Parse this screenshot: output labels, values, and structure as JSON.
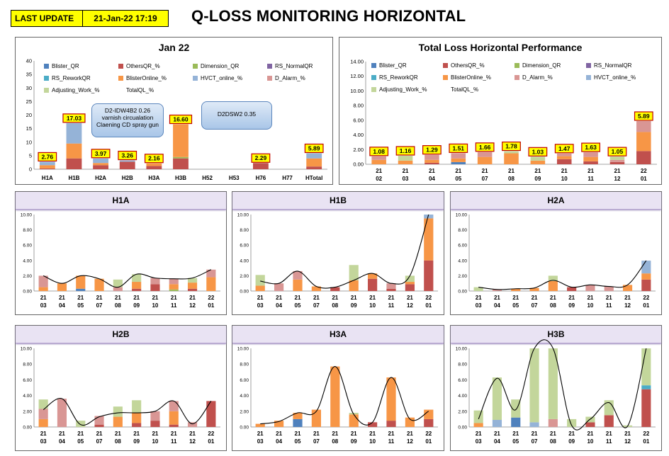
{
  "header": {
    "last_update_label": "LAST UPDATE",
    "last_update_value": "21-Jan-22 17:19",
    "title": "Q-LOSS MONITORING HORIZONTAL"
  },
  "colors": {
    "Blister_QR": "#4f81bd",
    "OthersQR_%": "#c0504d",
    "Dimension_QR": "#9bbb59",
    "RS_NormalQR": "#8064a2",
    "RS_ReworkQR": "#4bacc6",
    "BlisterOnline_%": "#f79646",
    "HVCT_online_%": "#95b3d7",
    "D_Alarm_%": "#d99694",
    "Adjusting_Work_%": "#c3d69b",
    "TotalQL_%": "#000000",
    "label_bg": "#ffff00",
    "label_border": "#c00000"
  },
  "legend_jan": [
    "Blister_QR",
    "OthersQR_%",
    "Dimension_QR",
    "RS_NormalQR",
    "RS_ReworkQR",
    "BlisterOnline_%",
    "HVCT_online_%",
    "D_Alarm_%",
    "Adjusting_Work_%",
    "TotalQL_%"
  ],
  "legend_total": [
    "Blister_QR",
    "OthersQR_%",
    "Dimension_QR",
    "RS_NormalQR",
    "RS_ReworkQR",
    "BlisterOnline_%",
    "D_Alarm_%",
    "HVCT_online_%",
    "Adjusting_Work_%",
    "TotalQL_%"
  ],
  "callouts": {
    "c1": "D2-IDW4B2 0.26 varnish circualation Claening CD spray gun",
    "c2": "D2DSW2 0.35"
  },
  "chart_data": [
    {
      "id": "jan",
      "type": "bar",
      "title": "Jan 22",
      "ylim": [
        0,
        40
      ],
      "yticks": [
        0,
        5,
        10,
        15,
        20,
        25,
        30,
        35,
        40
      ],
      "categories": [
        "H1A",
        "H1B",
        "H2A",
        "H2B",
        "H3A",
        "H3B",
        "H52",
        "H53",
        "H76",
        "H77",
        "HTotal"
      ],
      "totals": [
        2.76,
        17.03,
        3.97,
        3.26,
        2.16,
        16.6,
        null,
        null,
        2.29,
        null,
        5.89
      ],
      "totals_text": [
        "2.76",
        "17.03",
        "3.97",
        "3.26",
        "2.16",
        "16.60",
        "",
        "",
        "2.29",
        "",
        "5.89"
      ],
      "stacks": [
        {
          "OthersQR_%": 0.3,
          "BlisterOnline_%": 1.2,
          "HVCT_online_%": 1.26
        },
        {
          "OthersQR_%": 4.0,
          "BlisterOnline_%": 5.5,
          "HVCT_online_%": 7.53
        },
        {
          "OthersQR_%": 1.5,
          "BlisterOnline_%": 0.8,
          "HVCT_online_%": 1.67
        },
        {
          "OthersQR_%": 2.8,
          "HVCT_online_%": 0.46
        },
        {
          "OthersQR_%": 1.2,
          "BlisterOnline_%": 0.96
        },
        {
          "Dimension_QR": 0.5,
          "OthersQR_%": 4.0,
          "BlisterOnline_%": 12.1
        },
        {},
        {},
        {
          "OthersQR_%": 2.29
        },
        {},
        {
          "OthersQR_%": 1.0,
          "BlisterOnline_%": 3.0,
          "HVCT_online_%": 1.89
        }
      ]
    },
    {
      "id": "total",
      "type": "bar",
      "title": "Total Loss Horizontal Performance",
      "ylim": [
        0,
        14
      ],
      "yticks": [
        "0.00",
        "2.00",
        "4.00",
        "6.00",
        "8.00",
        "10.00",
        "12.00",
        "14.00"
      ],
      "categories": [
        "21 02",
        "21 03",
        "21 04",
        "21 05",
        "21 07",
        "21 08",
        "21 09",
        "21 10",
        "21 11",
        "21 12",
        "22 01"
      ],
      "totals": [
        1.08,
        1.16,
        1.29,
        1.51,
        1.66,
        1.78,
        1.03,
        1.47,
        1.63,
        1.05,
        5.89
      ],
      "totals_text": [
        "1.08",
        "1.16",
        "1.29",
        "1.51",
        "1.66",
        "1.78",
        "1.03",
        "1.47",
        "1.63",
        "1.05",
        "5.89"
      ],
      "stacks": [
        {
          "BlisterOnline_%": 0.6,
          "D_Alarm_%": 0.48
        },
        {
          "BlisterOnline_%": 0.5,
          "Adjusting_Work_%": 0.66
        },
        {
          "OthersQR_%": 0.2,
          "BlisterOnline_%": 0.4,
          "D_Alarm_%": 0.69
        },
        {
          "Blister_QR": 0.3,
          "BlisterOnline_%": 0.5,
          "D_Alarm_%": 0.71
        },
        {
          "BlisterOnline_%": 1.0,
          "D_Alarm_%": 0.66
        },
        {
          "BlisterOnline_%": 1.5,
          "Adjusting_Work_%": 0.28
        },
        {
          "BlisterOnline_%": 0.5,
          "Adjusting_Work_%": 0.53
        },
        {
          "OthersQR_%": 0.7,
          "BlisterOnline_%": 0.4,
          "D_Alarm_%": 0.37
        },
        {
          "OthersQR_%": 0.4,
          "BlisterOnline_%": 0.6,
          "D_Alarm_%": 0.63
        },
        {
          "OthersQR_%": 0.3,
          "Adjusting_Work_%": 0.45,
          "D_Alarm_%": 0.3
        },
        {
          "OthersQR_%": 1.8,
          "BlisterOnline_%": 2.6,
          "D_Alarm_%": 1.49
        }
      ]
    },
    {
      "id": "h1a",
      "type": "bar",
      "title": "H1A",
      "ylim": [
        0,
        10
      ],
      "categories": [
        "21 03",
        "21 04",
        "21 05",
        "21 07",
        "21 08",
        "21 09",
        "21 10",
        "21 11",
        "21 12",
        "22 01"
      ],
      "totals": [
        2.0,
        1.0,
        2.0,
        1.6,
        0.5,
        2.2,
        1.7,
        1.6,
        1.7,
        2.8
      ],
      "stacks": [
        {
          "BlisterOnline_%": 0.5,
          "D_Alarm_%": 1.5
        },
        {
          "BlisterOnline_%": 1.0
        },
        {
          "Blister_QR": 0.3,
          "BlisterOnline_%": 1.7
        },
        {
          "BlisterOnline_%": 1.6
        },
        {
          "D_Alarm_%": 0.5,
          "Adjusting_Work_%": 1.0
        },
        {
          "OthersQR_%": 0.3,
          "BlisterOnline_%": 0.9,
          "Adjusting_Work_%": 1.0
        },
        {
          "OthersQR_%": 0.9,
          "D_Alarm_%": 0.8
        },
        {
          "Dimension_QR": 0.2,
          "BlisterOnline_%": 0.7,
          "D_Alarm_%": 0.7
        },
        {
          "OthersQR_%": 0.3,
          "BlisterOnline_%": 0.8,
          "Adjusting_Work_%": 0.6
        },
        {
          "BlisterOnline_%": 1.8,
          "D_Alarm_%": 1.0
        }
      ]
    },
    {
      "id": "h1b",
      "type": "bar",
      "title": "H1B",
      "ylim": [
        0,
        10
      ],
      "categories": [
        "21 03",
        "21 04",
        "21 05",
        "21 07",
        "21 08",
        "21 09",
        "21 10",
        "21 11",
        "21 12",
        "22 01"
      ],
      "totals": [
        1.3,
        1.0,
        2.6,
        0.6,
        0.5,
        1.4,
        2.3,
        1.0,
        2.0,
        17.0
      ],
      "stacks": [
        {
          "BlisterOnline_%": 0.7,
          "Adjusting_Work_%": 1.4
        },
        {
          "D_Alarm_%": 1.0
        },
        {
          "BlisterOnline_%": 1.5,
          "D_Alarm_%": 1.1
        },
        {
          "BlisterOnline_%": 0.6
        },
        {
          "OthersQR_%": 0.5
        },
        {
          "BlisterOnline_%": 1.4,
          "Adjusting_Work_%": 2.0
        },
        {
          "OthersQR_%": 1.6,
          "BlisterOnline_%": 0.7
        },
        {
          "OthersQR_%": 0.3,
          "D_Alarm_%": 0.7
        },
        {
          "OthersQR_%": 0.9,
          "BlisterOnline_%": 0.3,
          "Adjusting_Work_%": 0.8
        },
        {
          "OthersQR_%": 4.0,
          "BlisterOnline_%": 5.5,
          "HVCT_online_%": 7.5
        }
      ]
    },
    {
      "id": "h2a",
      "type": "bar",
      "title": "H2A",
      "ylim": [
        0,
        10
      ],
      "categories": [
        "21 03",
        "21 04",
        "21 05",
        "21 07",
        "21 08",
        "21 09",
        "21 10",
        "21 11",
        "21 12",
        "22 01"
      ],
      "totals": [
        0.5,
        0.2,
        0.3,
        0.4,
        1.4,
        0.5,
        0.8,
        0.6,
        0.8,
        3.97
      ],
      "stacks": [
        {
          "Adjusting_Work_%": 0.5
        },
        {
          "D_Alarm_%": 0.2
        },
        {
          "BlisterOnline_%": 0.3
        },
        {
          "BlisterOnline_%": 0.4
        },
        {
          "BlisterOnline_%": 1.3,
          "Adjusting_Work_%": 0.7
        },
        {
          "OthersQR_%": 0.5
        },
        {
          "D_Alarm_%": 0.8
        },
        {
          "D_Alarm_%": 0.6
        },
        {
          "BlisterOnline_%": 0.8
        },
        {
          "OthersQR_%": 1.5,
          "BlisterOnline_%": 0.8,
          "HVCT_online_%": 1.67
        }
      ]
    },
    {
      "id": "h2b",
      "type": "bar",
      "title": "H2B",
      "ylim": [
        0,
        10
      ],
      "categories": [
        "21 03",
        "21 04",
        "21 05",
        "21 07",
        "21 08",
        "21 09",
        "21 10",
        "21 11",
        "21 12",
        "22 01"
      ],
      "totals": [
        2.2,
        3.6,
        0.3,
        1.3,
        1.8,
        1.8,
        2.0,
        3.3,
        0.4,
        3.3
      ],
      "stacks": [
        {
          "BlisterOnline_%": 1.0,
          "D_Alarm_%": 1.3,
          "Adjusting_Work_%": 1.2
        },
        {
          "D_Alarm_%": 3.6
        },
        {
          "Adjusting_Work_%": 0.8
        },
        {
          "OthersQR_%": 0.3,
          "D_Alarm_%": 1.1
        },
        {
          "BlisterOnline_%": 1.3,
          "Adjusting_Work_%": 1.3
        },
        {
          "OthersQR_%": 0.5,
          "BlisterOnline_%": 1.3,
          "Adjusting_Work_%": 1.6
        },
        {
          "OthersQR_%": 0.8,
          "D_Alarm_%": 1.2
        },
        {
          "OthersQR_%": 0.3,
          "BlisterOnline_%": 1.7,
          "D_Alarm_%": 1.3
        },
        {
          "D_Alarm_%": 0.6
        },
        {
          "OthersQR_%": 3.3
        }
      ]
    },
    {
      "id": "h3a",
      "type": "bar",
      "title": "H3A",
      "ylim": [
        0,
        10
      ],
      "categories": [
        "21 03",
        "21 04",
        "21 05",
        "21 07",
        "21 08",
        "21 09",
        "21 10",
        "21 11",
        "21 12",
        "22 01"
      ],
      "totals": [
        0.4,
        0.7,
        1.8,
        2.0,
        7.7,
        1.6,
        0.6,
        6.3,
        1.0,
        2.0
      ],
      "stacks": [
        {
          "BlisterOnline_%": 0.4
        },
        {
          "BlisterOnline_%": 0.8
        },
        {
          "Blister_QR": 1.0,
          "BlisterOnline_%": 0.8
        },
        {
          "BlisterOnline_%": 2.2
        },
        {
          "BlisterOnline_%": 7.7
        },
        {
          "BlisterOnline_%": 1.6,
          "Adjusting_Work_%": 0.2
        },
        {
          "OthersQR_%": 0.6
        },
        {
          "OthersQR_%": 0.8,
          "BlisterOnline_%": 5.5
        },
        {
          "BlisterOnline_%": 1.2
        },
        {
          "OthersQR_%": 1.0,
          "BlisterOnline_%": 1.2
        }
      ]
    },
    {
      "id": "h3b",
      "type": "bar",
      "title": "H3B",
      "ylim": [
        0,
        10
      ],
      "categories": [
        "21 03",
        "21 04",
        "21 05",
        "21 07",
        "21 08",
        "21 09",
        "21 10",
        "21 11",
        "21 12",
        "22 01"
      ],
      "totals": [
        1.0,
        6.2,
        2.2,
        10,
        10,
        0.2,
        1.0,
        3.1,
        0.1,
        10
      ],
      "stacks": [
        {
          "BlisterOnline_%": 0.5,
          "Adjusting_Work_%": 1.6
        },
        {
          "HVCT_online_%": 0.9,
          "Adjusting_Work_%": 5.4
        },
        {
          "Blister_QR": 1.2,
          "Adjusting_Work_%": 2.3
        },
        {
          "HVCT_online_%": 0.6,
          "Adjusting_Work_%": 9.4
        },
        {
          "D_Alarm_%": 1.0,
          "Adjusting_Work_%": 9.0
        },
        {
          "Adjusting_Work_%": 1.0
        },
        {
          "OthersQR_%": 0.6,
          "Adjusting_Work_%": 0.7
        },
        {
          "OthersQR_%": 1.5,
          "Adjusting_Work_%": 1.9
        },
        {
          "Adjusting_Work_%": 0.2
        },
        {
          "OthersQR_%": 4.8,
          "RS_ReworkQR": 0.5,
          "Adjusting_Work_%": 4.7
        }
      ]
    }
  ]
}
